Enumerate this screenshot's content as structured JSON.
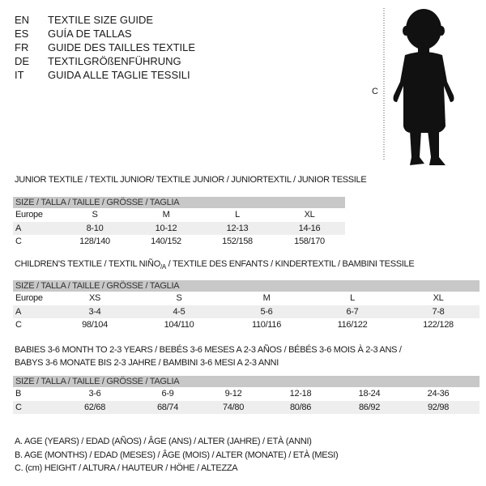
{
  "header": {
    "languages": [
      {
        "code": "EN",
        "title": "TEXTILE SIZE GUIDE"
      },
      {
        "code": "ES",
        "title": "GUÍA DE TALLAS"
      },
      {
        "code": "FR",
        "title": "GUIDE DES TAILLES TEXTILE"
      },
      {
        "code": "DE",
        "title": "TEXTILGRÖßENFÜHRUNG"
      },
      {
        "code": "IT",
        "title": "GUIDA ALLE TAGLIE TESSILI"
      }
    ]
  },
  "figure": {
    "height_label": "C",
    "icon": "baby-silhouette"
  },
  "junior": {
    "title": "JUNIOR TEXTILE / TEXTIL JUNIOR/ TEXTILE JUNIOR / JUNIORTEXTIL / JUNIOR TESSILE",
    "size_header": "SIZE / TALLA / TAILLE / GRÖSSE / TAGLIA",
    "rows": [
      {
        "label": "Europe",
        "values": [
          "S",
          "M",
          "L",
          "XL"
        ]
      },
      {
        "label": "A",
        "values": [
          "8-10",
          "10-12",
          "12-13",
          "14-16"
        ]
      },
      {
        "label": "C",
        "values": [
          "128/140",
          "140/152",
          "152/158",
          "158/170"
        ]
      }
    ]
  },
  "children": {
    "title_pre": "CHILDREN'S TEXTILE / TEXTIL NIÑO",
    "title_sub": "/A",
    "title_post": " / TEXTILE DES ENFANTS / KINDERTEXTIL / BAMBINI TESSILE",
    "size_header": "SIZE / TALLA / TAILLE / GRÖSSE / TAGLIA",
    "rows": [
      {
        "label": "Europe",
        "values": [
          "XS",
          "S",
          "M",
          "L",
          "XL"
        ]
      },
      {
        "label": "A",
        "values": [
          "3-4",
          "4-5",
          "5-6",
          "6-7",
          "7-8"
        ]
      },
      {
        "label": "C",
        "values": [
          "98/104",
          "104/110",
          "110/116",
          "116/122",
          "122/128"
        ]
      }
    ]
  },
  "babies": {
    "title_line1": "BABIES 3-6 MONTH TO 2-3 YEARS / BEBÉS 3-6 MESES A 2-3 AÑOS / BÉBÉS 3-6 MOIS À 2-3 ANS /",
    "title_line2": "BABYS 3-6 MONATE BIS 2-3 JAHRE / BAMBINI 3-6 MESI A 2-3 ANNI",
    "size_header": "SIZE / TALLA / TAILLE / GRÖSSE / TAGLIA",
    "rows": [
      {
        "label": "B",
        "values": [
          "3-6",
          "6-9",
          "9-12",
          "12-18",
          "18-24",
          "24-36"
        ]
      },
      {
        "label": "C",
        "values": [
          "62/68",
          "68/74",
          "74/80",
          "80/86",
          "86/92",
          "92/98"
        ]
      }
    ]
  },
  "legend": [
    "A. AGE (YEARS) / EDAD (AÑOS) / ÂGE (ANS) / ALTER (JAHRE) / ETÀ (ANNI)",
    "B. AGE (MONTHS) / EDAD (MESES) / ÂGE (MOIS) / ALTER (MONATE) / ETÀ (MESI)",
    "C. (cm) HEIGHT / ALTURA / HAUTEUR / HÖHE / ALTEZZA"
  ]
}
